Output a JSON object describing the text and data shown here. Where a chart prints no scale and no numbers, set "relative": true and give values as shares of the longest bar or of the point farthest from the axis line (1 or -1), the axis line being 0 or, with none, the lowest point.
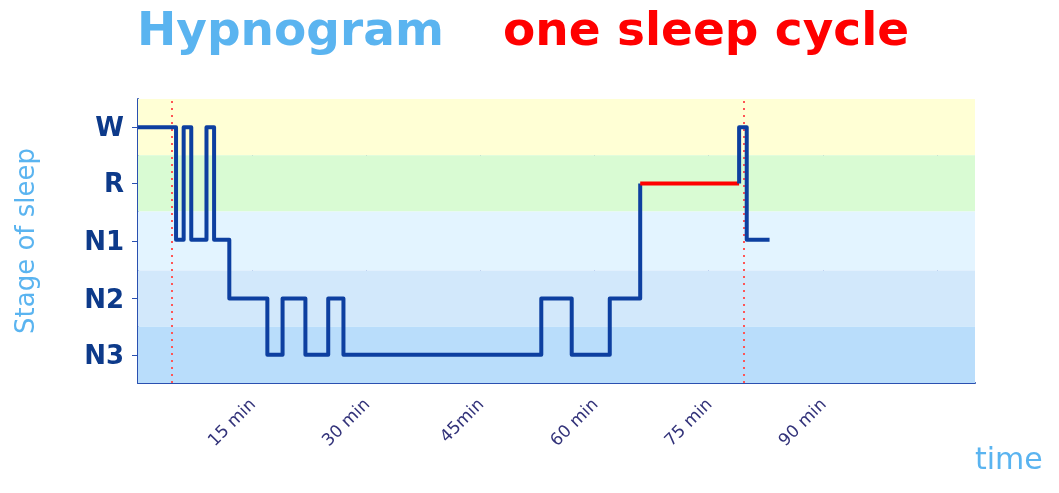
{
  "chart_data": {
    "type": "step",
    "title": "Hypnogram",
    "subtitle": "one sleep cycle",
    "xlabel": "time",
    "ylabel": "Stage of sleep",
    "relative": true,
    "series": [
      {
        "color": "#0d3fa0",
        "x": [
          0,
          5,
          6,
          7,
          9,
          10,
          12,
          17,
          19,
          22,
          25,
          27,
          53,
          57,
          62,
          66
        ],
        "values": [
          1,
          0.56,
          1,
          0.56,
          1,
          0.56,
          0.33,
          0.11,
          0.33,
          0.11,
          0.33,
          0.11,
          0.33,
          0.11,
          0.33,
          0.78
        ]
      },
      {
        "color": "#ff0000",
        "x": [
          66,
          79
        ],
        "values": [
          0.78,
          0.78
        ]
      },
      {
        "color": "#0d3fa0",
        "x": [
          79,
          79,
          80,
          83
        ],
        "values": [
          0.78,
          1,
          0.56,
          0.56
        ]
      }
    ],
    "xlim": [
      0,
      110
    ],
    "xticks": [
      {
        "value": 0,
        "label": null
      },
      {
        "value": 15,
        "label": "15 min"
      },
      {
        "value": 30,
        "label": "30 min"
      },
      {
        "value": 45,
        "label": "45min"
      },
      {
        "value": 60,
        "label": "60 min"
      },
      {
        "value": 75,
        "label": "75 min"
      },
      {
        "value": 90,
        "label": "90 min"
      },
      {
        "value": 105,
        "label": null
      }
    ],
    "annotations": [
      "W",
      "R",
      "N1",
      "N2",
      "N3"
    ],
    "bands": [
      {
        "axis": "y",
        "from": 0.89,
        "to": 1.11,
        "color": "#ffffd5"
      },
      {
        "axis": "y",
        "from": 0.67,
        "to": 0.89,
        "color": "#d9fbd3"
      },
      {
        "axis": "y",
        "from": 0.44,
        "to": 0.67,
        "color": "#e3f4ff"
      },
      {
        "axis": "y",
        "from": 0.22,
        "to": 0.44,
        "color": "#d2e8fb"
      },
      {
        "axis": "y",
        "from": 0,
        "to": 0.22,
        "color": "#b9ddfb"
      }
    ],
    "ref_lines": [
      {
        "axis": "x",
        "value": 4.4,
        "color": "#ff5555",
        "line_style": "dotted"
      },
      {
        "axis": "x",
        "value": 79.6,
        "color": "#ff5555",
        "line_style": "dotted"
      }
    ],
    "grid": "x"
  }
}
